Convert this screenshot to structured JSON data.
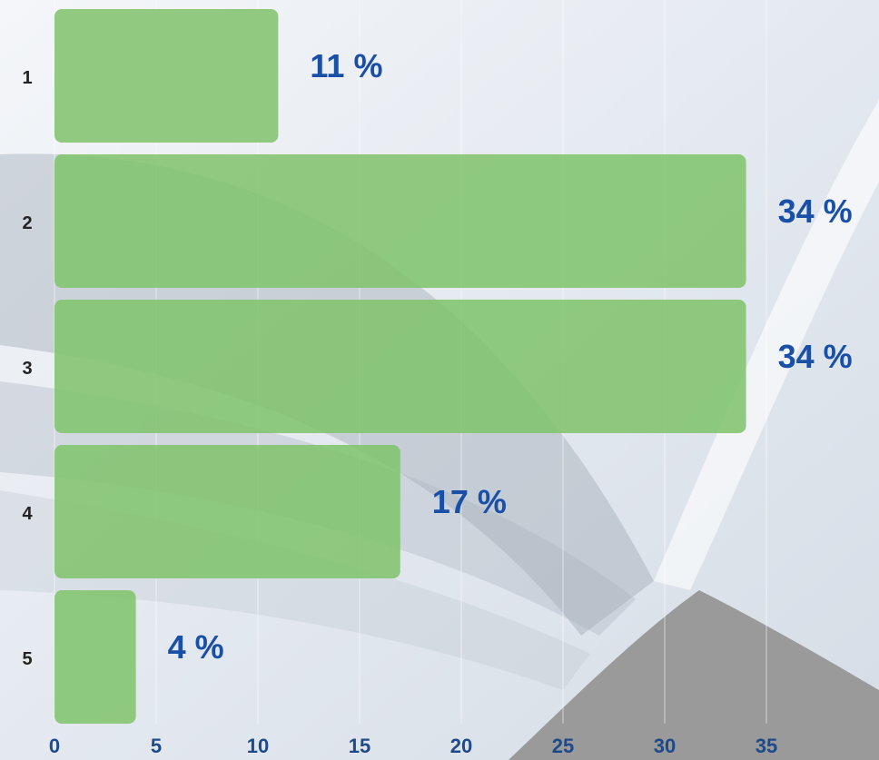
{
  "chart_data": {
    "type": "bar",
    "orientation": "horizontal",
    "categories": [
      "1",
      "2",
      "3",
      "4",
      "5"
    ],
    "values": [
      11,
      34,
      34,
      17,
      4
    ],
    "value_labels": [
      "11 %",
      "34 %",
      "34 %",
      "17 %",
      "4 %"
    ],
    "color": "#82c46f",
    "xlim": [
      0,
      35
    ],
    "xticks": [
      0,
      5,
      10,
      15,
      20,
      25,
      30,
      35
    ],
    "grid": true
  }
}
